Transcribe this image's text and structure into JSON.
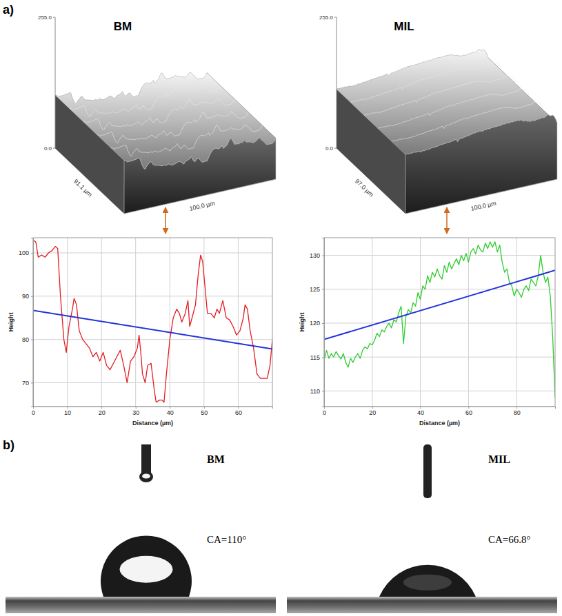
{
  "panel_labels": [
    "a)",
    "b)"
  ],
  "surfaces": [
    {
      "title": "BM",
      "zlim": [
        0,
        255
      ],
      "zticks": [
        {
          "value": 0,
          "label": "0.0"
        },
        {
          "value": 255,
          "label": "255.0"
        }
      ],
      "depth_label": "91.1 µm",
      "width_label": "100.0 µm"
    },
    {
      "title": "MIL",
      "zlim": [
        0,
        255
      ],
      "zticks": [
        {
          "value": 0,
          "label": "0.0"
        },
        {
          "value": 255,
          "label": "255.0"
        }
      ],
      "depth_label": "97.0 µm",
      "width_label": "100.0 µm"
    }
  ],
  "chart_data": [
    {
      "type": "line",
      "x_label": "Distance (µm)",
      "y_label": "Height",
      "xlim": [
        0,
        70
      ],
      "xticks": [
        0,
        10,
        20,
        30,
        40,
        50,
        60
      ],
      "ylim": [
        64.5,
        103.5
      ],
      "yticks": [
        70,
        80,
        90,
        100
      ],
      "grid": true,
      "series": [
        {
          "color": "#e31e24",
          "x": [
            0,
            0.8,
            1.5,
            2.5,
            3.5,
            4.5,
            5.5,
            6.5,
            7.2,
            8,
            9,
            9.7,
            10.5,
            11.5,
            12,
            12.7,
            13.5,
            14.5,
            15.5,
            16.5,
            17.5,
            18.5,
            19.5,
            20.5,
            21.5,
            22.5,
            23.5,
            24.5,
            25.5,
            26.5,
            27.5,
            28.5,
            29.5,
            30.5,
            31,
            31.5,
            32,
            32.8,
            33.5,
            34.5,
            35.5,
            36,
            37,
            37.7,
            38.3,
            39,
            40,
            41,
            42,
            42.8,
            43.5,
            44.5,
            45.3,
            45.8,
            46.5,
            47.5,
            48.3,
            49,
            49.6,
            50.3,
            51,
            52,
            53,
            53.8,
            54.5,
            55.5,
            56.5,
            57.5,
            58.5,
            59.5,
            60.5,
            61.5,
            62,
            62.7,
            63.5,
            64.5,
            65.5,
            66.5,
            67.5,
            68.5,
            69.3,
            70
          ],
          "values": [
            103,
            102.5,
            99,
            99.5,
            99,
            100,
            100.5,
            101.5,
            101,
            90,
            80,
            77,
            83,
            87,
            89.5,
            88,
            82,
            80,
            79,
            78,
            76,
            77,
            75,
            77,
            74,
            73,
            74.5,
            76,
            77.5,
            74,
            70,
            75,
            76,
            78,
            81,
            77,
            72,
            70,
            74,
            74.5,
            68,
            65.5,
            66,
            66,
            65.5,
            72,
            80,
            85,
            87,
            86,
            84,
            86,
            89,
            83,
            85,
            88,
            95,
            99.5,
            98,
            92,
            86,
            86,
            85,
            87,
            86,
            89,
            85,
            84.5,
            83,
            81,
            82,
            85,
            88,
            87,
            82,
            78,
            72,
            71,
            71,
            71,
            74,
            80
          ]
        },
        {
          "color": "#2233dd",
          "x": [
            0,
            70
          ],
          "values": [
            86.7,
            77.8
          ]
        }
      ]
    },
    {
      "type": "line",
      "x_label": "Distance (µm)",
      "y_label": "Height",
      "xlim": [
        0,
        96
      ],
      "xticks": [
        0,
        20,
        40,
        60,
        80
      ],
      "ylim": [
        107.7,
        132.6
      ],
      "yticks": [
        110,
        115,
        120,
        125,
        130
      ],
      "grid": true,
      "series": [
        {
          "color": "#2ecc2e",
          "x": [
            0,
            1,
            2,
            3,
            4,
            5,
            6,
            7,
            8,
            9,
            10,
            11,
            12,
            13,
            14,
            15,
            16,
            17,
            18,
            19,
            20,
            21,
            22,
            23,
            24,
            25,
            26,
            27,
            28,
            29,
            30,
            31,
            32,
            33,
            34,
            35,
            36,
            37,
            38,
            39,
            40,
            41,
            42,
            43,
            44,
            45,
            46,
            47,
            48,
            49,
            50,
            51,
            52,
            53,
            54,
            55,
            56,
            57,
            58,
            59,
            60,
            61,
            62,
            63,
            64,
            65,
            66,
            67,
            68,
            69,
            70,
            71,
            72,
            73,
            74,
            75,
            76,
            77,
            78,
            79,
            80,
            81,
            82,
            83,
            84,
            85,
            86,
            87,
            88,
            89,
            90,
            91,
            92,
            93,
            94,
            95,
            96
          ],
          "values": [
            114.5,
            116,
            114.8,
            115.5,
            115,
            115.8,
            115.2,
            114.7,
            115.5,
            114.2,
            113.5,
            114.8,
            114.2,
            115,
            115.5,
            114.8,
            116,
            116.5,
            116.2,
            117,
            116.8,
            117.5,
            118.5,
            118,
            119,
            118.7,
            119.5,
            120,
            119.3,
            120.5,
            120.2,
            121.5,
            122.5,
            117,
            121,
            122,
            121.5,
            123,
            122.5,
            124.5,
            123.5,
            125.5,
            125,
            127,
            126,
            127.5,
            126.8,
            128,
            127,
            126.5,
            128.5,
            127.5,
            129,
            128,
            128.8,
            129.5,
            128.6,
            130,
            129.2,
            130.3,
            129,
            130.5,
            131,
            130.2,
            131.5,
            130.8,
            130.5,
            131.8,
            131,
            132,
            131.2,
            132,
            130.5,
            131.5,
            129,
            127.5,
            128,
            126,
            125.5,
            124,
            125,
            124.5,
            123.8,
            125,
            125.5,
            124.8,
            126.5,
            126,
            125.5,
            127,
            130,
            127.5,
            126,
            126.8,
            124,
            118,
            109
          ]
        },
        {
          "color": "#2233dd",
          "x": [
            0,
            96
          ],
          "values": [
            117.6,
            127.8
          ]
        }
      ]
    }
  ],
  "contact_angle": [
    {
      "title": "BM",
      "value": 110,
      "label": "CA=110°"
    },
    {
      "title": "MIL",
      "value": 66.8,
      "label": "CA=66.8°"
    }
  ]
}
